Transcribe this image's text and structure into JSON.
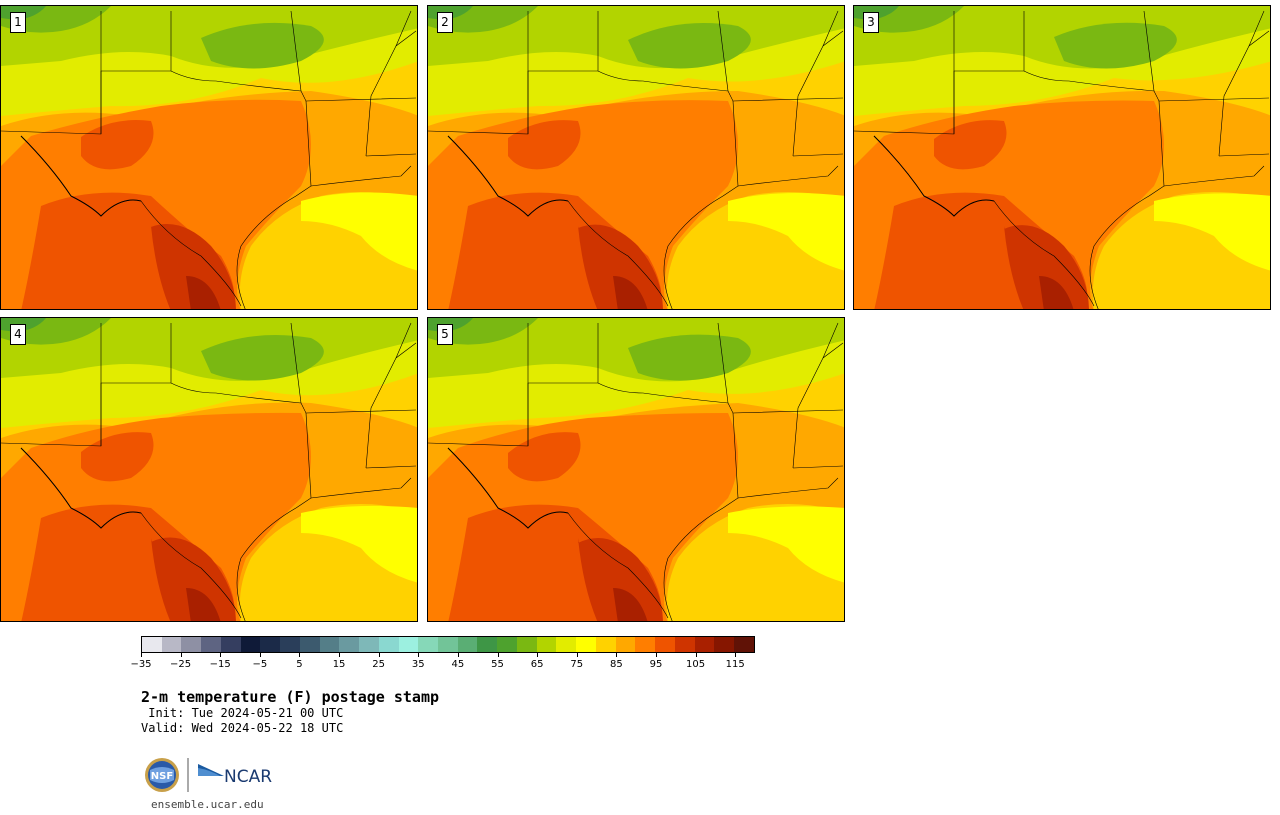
{
  "stamps": [
    {
      "label": "1"
    },
    {
      "label": "2"
    },
    {
      "label": "3"
    },
    {
      "label": "4"
    },
    {
      "label": "5"
    }
  ],
  "colorbar": {
    "colors": [
      "#e8e8ee",
      "#b8b8c6",
      "#8e90a4",
      "#5e6482",
      "#353e60",
      "#0f1a38",
      "#1b2a48",
      "#2a3e5a",
      "#3c5a6e",
      "#547e88",
      "#6a9aa0",
      "#7eb8b8",
      "#8ad8d0",
      "#9cf0e0",
      "#86d8b8",
      "#72c498",
      "#5aae74",
      "#3e9646",
      "#4ea22e",
      "#7ab812",
      "#b2d400",
      "#e2ec00",
      "#ffff00",
      "#ffd200",
      "#ffa800",
      "#ff7e00",
      "#ef5400",
      "#cf3400",
      "#a92000",
      "#861600",
      "#601206"
    ],
    "tick_labels": [
      "−35",
      "−25",
      "−15",
      "−5",
      "5",
      "15",
      "25",
      "35",
      "45",
      "55",
      "65",
      "75",
      "85",
      "95",
      "105",
      "115"
    ]
  },
  "title": "2-m temperature (F) postage stamp",
  "init": " Init: Tue 2024-05-21 00 UTC",
  "valid": "Valid: Wed 2024-05-22 18 UTC",
  "logo": {
    "left": "NSF",
    "right": "NCAR"
  },
  "site": "ensemble.ucar.edu"
}
